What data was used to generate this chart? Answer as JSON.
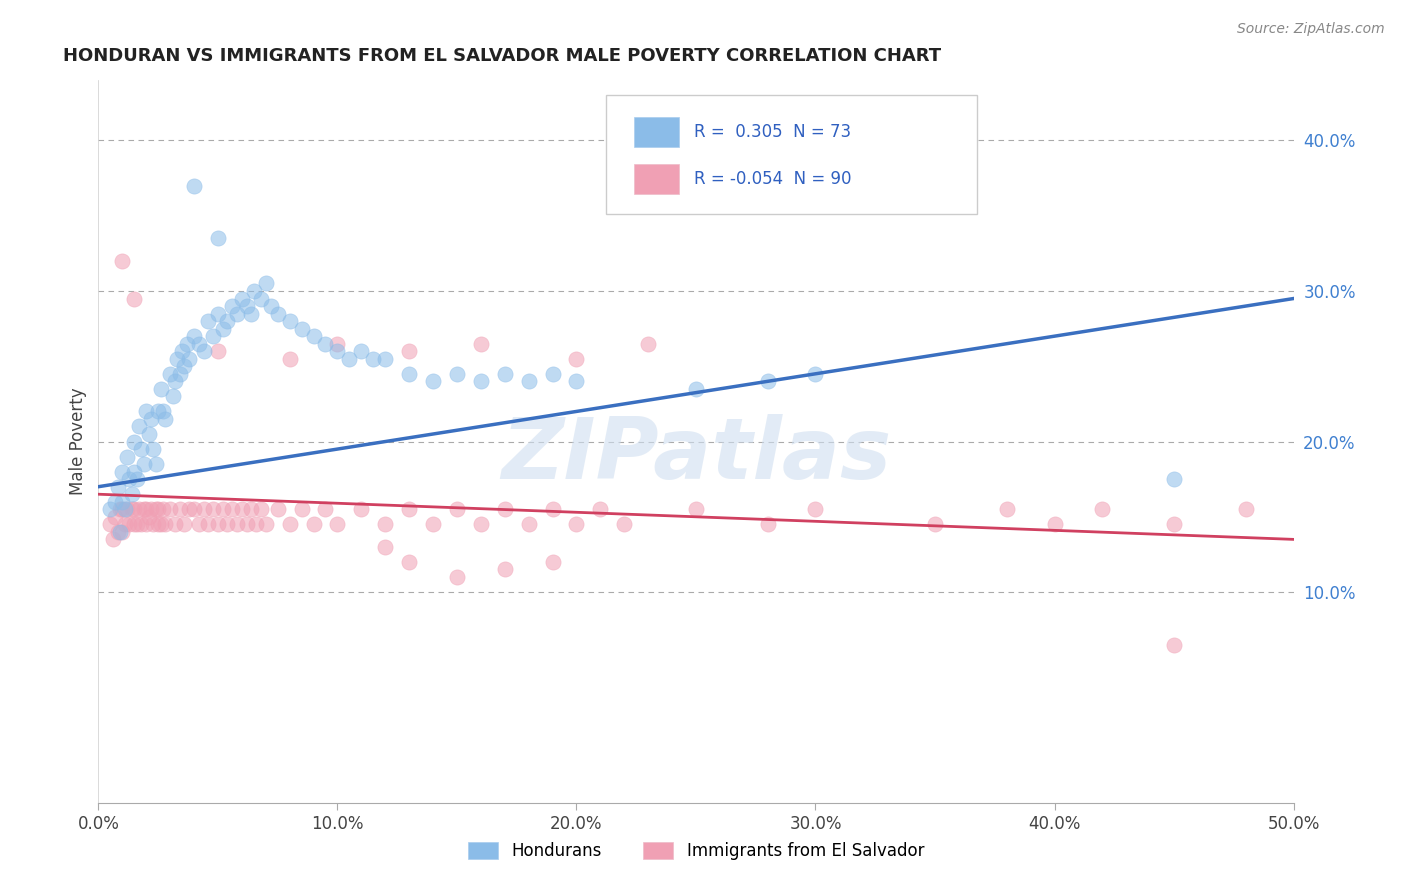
{
  "title": "HONDURAN VS IMMIGRANTS FROM EL SALVADOR MALE POVERTY CORRELATION CHART",
  "source": "Source: ZipAtlas.com",
  "ylabel": "Male Poverty",
  "xlim": [
    0.0,
    0.5
  ],
  "ylim": [
    -0.04,
    0.44
  ],
  "xticks": [
    0.0,
    0.1,
    0.2,
    0.3,
    0.4,
    0.5
  ],
  "xticklabels": [
    "0.0%",
    "10.0%",
    "20.0%",
    "30.0%",
    "40.0%",
    "50.0%"
  ],
  "yticks_right": [
    0.1,
    0.2,
    0.3,
    0.4
  ],
  "yticklabels_right": [
    "10.0%",
    "20.0%",
    "30.0%",
    "40.0%"
  ],
  "hondurans_color": "#8bbce8",
  "salvador_color": "#f0a0b4",
  "hondurans_line_color": "#3a6fc0",
  "salvador_line_color": "#d04060",
  "watermark": "ZIPatlas",
  "hon_line_x0": 0.0,
  "hon_line_y0": 0.17,
  "hon_line_x1": 0.5,
  "hon_line_y1": 0.295,
  "sal_line_x0": 0.0,
  "sal_line_y0": 0.165,
  "sal_line_x1": 0.5,
  "sal_line_y1": 0.135,
  "hondurans_scatter": [
    [
      0.005,
      0.155
    ],
    [
      0.007,
      0.16
    ],
    [
      0.008,
      0.17
    ],
    [
      0.009,
      0.14
    ],
    [
      0.01,
      0.18
    ],
    [
      0.01,
      0.16
    ],
    [
      0.011,
      0.155
    ],
    [
      0.012,
      0.19
    ],
    [
      0.013,
      0.175
    ],
    [
      0.014,
      0.165
    ],
    [
      0.015,
      0.2
    ],
    [
      0.015,
      0.18
    ],
    [
      0.016,
      0.175
    ],
    [
      0.017,
      0.21
    ],
    [
      0.018,
      0.195
    ],
    [
      0.019,
      0.185
    ],
    [
      0.02,
      0.22
    ],
    [
      0.021,
      0.205
    ],
    [
      0.022,
      0.215
    ],
    [
      0.023,
      0.195
    ],
    [
      0.024,
      0.185
    ],
    [
      0.025,
      0.22
    ],
    [
      0.026,
      0.235
    ],
    [
      0.027,
      0.22
    ],
    [
      0.028,
      0.215
    ],
    [
      0.03,
      0.245
    ],
    [
      0.031,
      0.23
    ],
    [
      0.032,
      0.24
    ],
    [
      0.033,
      0.255
    ],
    [
      0.034,
      0.245
    ],
    [
      0.035,
      0.26
    ],
    [
      0.036,
      0.25
    ],
    [
      0.037,
      0.265
    ],
    [
      0.038,
      0.255
    ],
    [
      0.04,
      0.27
    ],
    [
      0.042,
      0.265
    ],
    [
      0.044,
      0.26
    ],
    [
      0.046,
      0.28
    ],
    [
      0.048,
      0.27
    ],
    [
      0.05,
      0.285
    ],
    [
      0.052,
      0.275
    ],
    [
      0.054,
      0.28
    ],
    [
      0.056,
      0.29
    ],
    [
      0.058,
      0.285
    ],
    [
      0.06,
      0.295
    ],
    [
      0.062,
      0.29
    ],
    [
      0.064,
      0.285
    ],
    [
      0.065,
      0.3
    ],
    [
      0.068,
      0.295
    ],
    [
      0.07,
      0.305
    ],
    [
      0.072,
      0.29
    ],
    [
      0.075,
      0.285
    ],
    [
      0.08,
      0.28
    ],
    [
      0.085,
      0.275
    ],
    [
      0.09,
      0.27
    ],
    [
      0.095,
      0.265
    ],
    [
      0.1,
      0.26
    ],
    [
      0.105,
      0.255
    ],
    [
      0.11,
      0.26
    ],
    [
      0.115,
      0.255
    ],
    [
      0.12,
      0.255
    ],
    [
      0.13,
      0.245
    ],
    [
      0.14,
      0.24
    ],
    [
      0.15,
      0.245
    ],
    [
      0.16,
      0.24
    ],
    [
      0.17,
      0.245
    ],
    [
      0.18,
      0.24
    ],
    [
      0.19,
      0.245
    ],
    [
      0.2,
      0.24
    ],
    [
      0.25,
      0.235
    ],
    [
      0.28,
      0.24
    ],
    [
      0.3,
      0.245
    ],
    [
      0.45,
      0.175
    ],
    [
      0.04,
      0.37
    ],
    [
      0.05,
      0.335
    ]
  ],
  "salvador_scatter": [
    [
      0.005,
      0.145
    ],
    [
      0.006,
      0.135
    ],
    [
      0.007,
      0.15
    ],
    [
      0.008,
      0.14
    ],
    [
      0.009,
      0.155
    ],
    [
      0.01,
      0.14
    ],
    [
      0.01,
      0.155
    ],
    [
      0.011,
      0.145
    ],
    [
      0.012,
      0.155
    ],
    [
      0.013,
      0.145
    ],
    [
      0.014,
      0.155
    ],
    [
      0.015,
      0.145
    ],
    [
      0.015,
      0.155
    ],
    [
      0.016,
      0.145
    ],
    [
      0.017,
      0.155
    ],
    [
      0.018,
      0.145
    ],
    [
      0.019,
      0.155
    ],
    [
      0.02,
      0.145
    ],
    [
      0.02,
      0.155
    ],
    [
      0.021,
      0.15
    ],
    [
      0.022,
      0.155
    ],
    [
      0.023,
      0.145
    ],
    [
      0.024,
      0.155
    ],
    [
      0.025,
      0.145
    ],
    [
      0.025,
      0.155
    ],
    [
      0.026,
      0.145
    ],
    [
      0.027,
      0.155
    ],
    [
      0.028,
      0.145
    ],
    [
      0.03,
      0.155
    ],
    [
      0.032,
      0.145
    ],
    [
      0.034,
      0.155
    ],
    [
      0.036,
      0.145
    ],
    [
      0.038,
      0.155
    ],
    [
      0.04,
      0.155
    ],
    [
      0.042,
      0.145
    ],
    [
      0.044,
      0.155
    ],
    [
      0.046,
      0.145
    ],
    [
      0.048,
      0.155
    ],
    [
      0.05,
      0.145
    ],
    [
      0.052,
      0.155
    ],
    [
      0.054,
      0.145
    ],
    [
      0.056,
      0.155
    ],
    [
      0.058,
      0.145
    ],
    [
      0.06,
      0.155
    ],
    [
      0.062,
      0.145
    ],
    [
      0.064,
      0.155
    ],
    [
      0.066,
      0.145
    ],
    [
      0.068,
      0.155
    ],
    [
      0.07,
      0.145
    ],
    [
      0.075,
      0.155
    ],
    [
      0.08,
      0.145
    ],
    [
      0.085,
      0.155
    ],
    [
      0.09,
      0.145
    ],
    [
      0.095,
      0.155
    ],
    [
      0.1,
      0.145
    ],
    [
      0.11,
      0.155
    ],
    [
      0.12,
      0.145
    ],
    [
      0.13,
      0.155
    ],
    [
      0.14,
      0.145
    ],
    [
      0.15,
      0.155
    ],
    [
      0.16,
      0.145
    ],
    [
      0.17,
      0.155
    ],
    [
      0.18,
      0.145
    ],
    [
      0.19,
      0.155
    ],
    [
      0.2,
      0.145
    ],
    [
      0.21,
      0.155
    ],
    [
      0.22,
      0.145
    ],
    [
      0.25,
      0.155
    ],
    [
      0.28,
      0.145
    ],
    [
      0.3,
      0.155
    ],
    [
      0.35,
      0.145
    ],
    [
      0.38,
      0.155
    ],
    [
      0.4,
      0.145
    ],
    [
      0.42,
      0.155
    ],
    [
      0.45,
      0.145
    ],
    [
      0.48,
      0.155
    ],
    [
      0.01,
      0.32
    ],
    [
      0.015,
      0.295
    ],
    [
      0.05,
      0.26
    ],
    [
      0.08,
      0.255
    ],
    [
      0.1,
      0.265
    ],
    [
      0.13,
      0.26
    ],
    [
      0.16,
      0.265
    ],
    [
      0.2,
      0.255
    ],
    [
      0.23,
      0.265
    ],
    [
      0.12,
      0.13
    ],
    [
      0.13,
      0.12
    ],
    [
      0.15,
      0.11
    ],
    [
      0.17,
      0.115
    ],
    [
      0.19,
      0.12
    ],
    [
      0.45,
      0.065
    ]
  ]
}
